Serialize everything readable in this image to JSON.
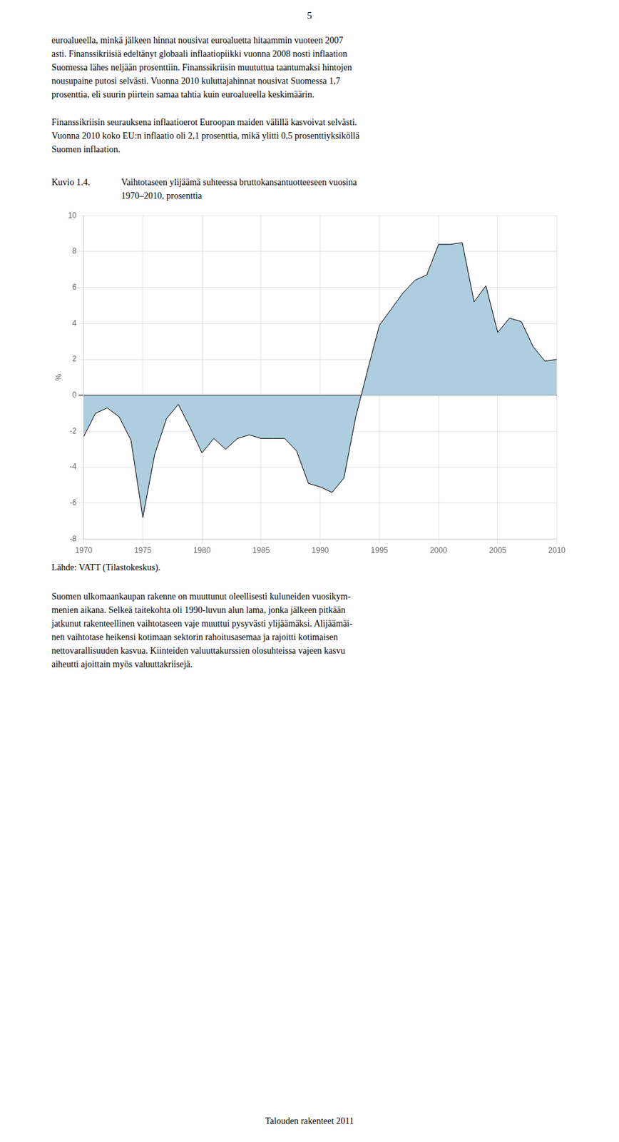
{
  "page_number": "5",
  "text_before": [
    [
      "euroalueella, minkä jälkeen hinnat nousivat euroaluetta hitaammin vuoteen 2007",
      "asti. Finanssikriisiä edeltänyt globaali inflaatiopiikki vuonna 2008 nosti inflaation",
      "Suomessa lähes neljään prosenttiin. Finanssikriisin muututtua taantumaksi hintojen",
      "nousupaine putosi selvästi. Vuonna 2010 kuluttajahinnat nousivat Suomessa 1,7",
      "prosenttia, eli suurin piirtein samaa tahtia kuin euroalueella keskimäärin."
    ],
    [
      "Finanssikriisin seurauksena inflaatioerot Euroopan maiden välillä kasvoivat selvästi.",
      "Vuonna 2010 koko EU:n inflaatio oli 2,1 prosenttia, mikä ylitti 0,5 prosenttiyksiköllä",
      "Suomen inflaation."
    ]
  ],
  "figure_number": "Kuvio 1.4.",
  "source": "Lähde: VATT (Tilastokeskus).",
  "text_after": [
    [
      "Suomen ulkomaankaupan rakenne on muuttunut oleellisesti kuluneiden vuosikym-",
      "menien aikana. Selkeä taitekohta oli 1990-luvun alun lama, jonka jälkeen pitkään",
      "jatkunut rakenteellinen vaihtotaseen vaje muuttui pysyvästi ylijäämäksi. Alijäämäi-",
      "nen vaihtotase heikensi kotimaan sektorin rahoitusasemaa ja rajoitti kotimaisen",
      "nettovarallisuuden kasvua. Kiinteiden valuuttakurssien olosuhteissa vajeen kasvu",
      "aiheutti ajoittain myös valuuttakriisejä."
    ]
  ],
  "footer": "Talouden rakenteet 2011",
  "chart_data": {
    "type": "area",
    "title": [
      "Vaihtotaseen ylijäämä suhteessa bruttokansantuotteeseen vuosina",
      "1970–2010, prosenttia"
    ],
    "ylabel": "%",
    "x": [
      1970,
      1971,
      1972,
      1973,
      1974,
      1975,
      1976,
      1977,
      1978,
      1979,
      1980,
      1981,
      1982,
      1983,
      1984,
      1985,
      1986,
      1987,
      1988,
      1989,
      1990,
      1991,
      1992,
      1993,
      1994,
      1995,
      1996,
      1997,
      1998,
      1999,
      2000,
      2001,
      2002,
      2003,
      2004,
      2005,
      2006,
      2007,
      2008,
      2009,
      2010
    ],
    "values": [
      -2.3,
      -1.0,
      -0.7,
      -1.2,
      -2.5,
      -6.8,
      -3.3,
      -1.3,
      -0.5,
      -1.8,
      -3.2,
      -2.4,
      -3.0,
      -2.4,
      -2.2,
      -2.4,
      -2.4,
      -2.4,
      -3.1,
      -4.9,
      -5.1,
      -5.4,
      -4.6,
      -1.2,
      1.4,
      3.9,
      4.8,
      5.7,
      6.4,
      6.7,
      8.4,
      8.4,
      8.5,
      5.2,
      6.1,
      3.5,
      4.3,
      4.1,
      2.7,
      1.9,
      2.0
    ],
    "color": "#aecddf",
    "xlim": [
      1970,
      2010
    ],
    "xticks": [
      1970,
      1975,
      1980,
      1985,
      1990,
      1995,
      2000,
      2005,
      2010
    ],
    "ylim": [
      -8,
      10
    ],
    "yticks": [
      -8,
      -6,
      -4,
      -2,
      0,
      2,
      4,
      6,
      8,
      10
    ],
    "grid": true
  }
}
